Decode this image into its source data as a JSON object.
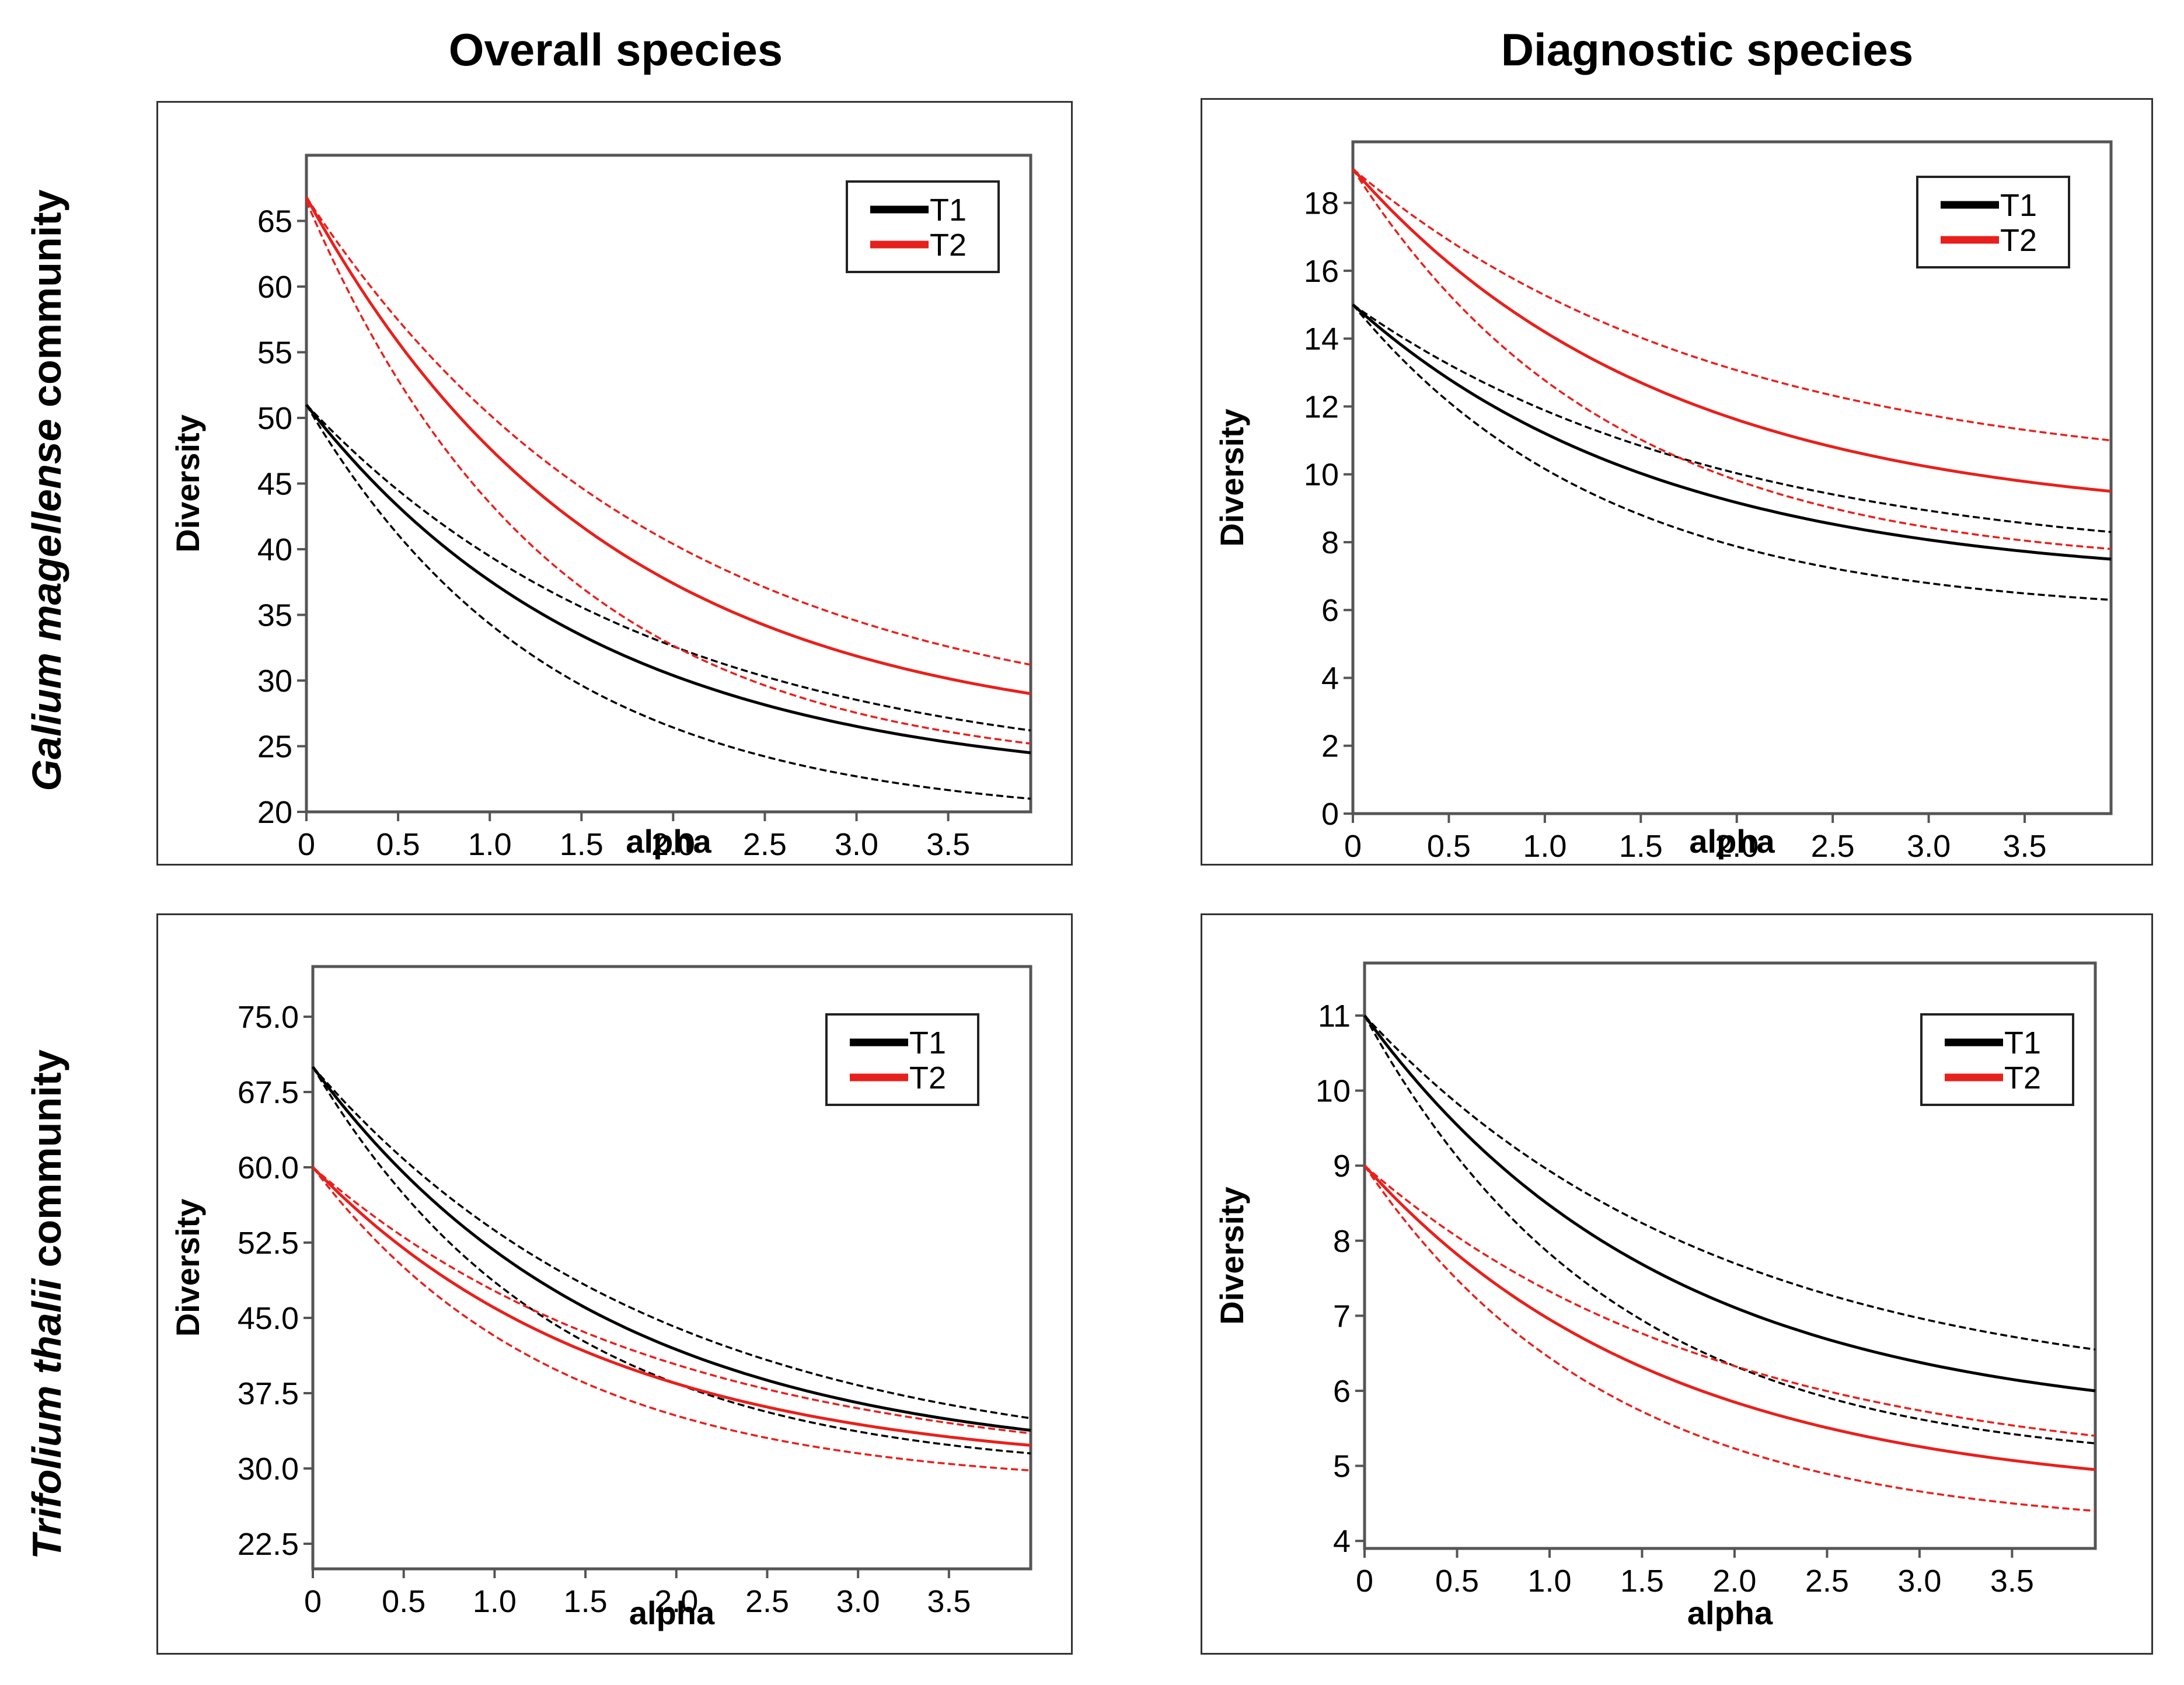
{
  "column_titles": [
    "Overall species",
    "Diagnostic species"
  ],
  "row_titles": [
    {
      "italic": "Galium magellense",
      "rest": " community"
    },
    {
      "italic": "Trifolium thalii",
      "rest": " community"
    }
  ],
  "colors": {
    "T1": "#000000",
    "T2": "#e8201c",
    "frame": "#555555"
  },
  "chart_data": [
    {
      "id": "galium-overall",
      "type": "line",
      "title": "Overall species",
      "xlabel": "alpha",
      "ylabel": "Diversity",
      "xlim": [
        0,
        3.95
      ],
      "ylim": [
        20,
        70
      ],
      "xticks": [
        0,
        0.5,
        1.0,
        1.5,
        2.0,
        2.5,
        3.0,
        3.5
      ],
      "xtick_labels": [
        "0",
        "0.5",
        "1.0",
        "1.5",
        "2.0",
        "2.5",
        "3.0",
        "3.5"
      ],
      "yticks": [
        20,
        25,
        30,
        35,
        40,
        45,
        50,
        55,
        60,
        65
      ],
      "ytick_labels": [
        "20",
        "25",
        "30",
        "35",
        "40",
        "45",
        "50",
        "55",
        "60",
        "65"
      ],
      "legend": [
        "T1",
        "T2"
      ],
      "legend_position": "top-right",
      "series": [
        {
          "name": "T1",
          "lower": [
            51,
            21
          ],
          "mid": [
            51,
            24.5
          ],
          "upper": [
            51,
            26.2
          ]
        },
        {
          "name": "T2",
          "lower": [
            66.5,
            25.2
          ],
          "mid": [
            66.8,
            29
          ],
          "upper": [
            66.8,
            31.2
          ]
        }
      ]
    },
    {
      "id": "galium-diagnostic",
      "type": "line",
      "title": "Diagnostic species",
      "xlabel": "alpha",
      "ylabel": "Diversity",
      "xlim": [
        0,
        3.95
      ],
      "ylim": [
        0,
        19.8
      ],
      "xticks": [
        0,
        0.5,
        1.0,
        1.5,
        2.0,
        2.5,
        3.0,
        3.5
      ],
      "xtick_labels": [
        "0",
        "0.5",
        "1.0",
        "1.5",
        "2.0",
        "2.5",
        "3.0",
        "3.5"
      ],
      "yticks": [
        0,
        2,
        4,
        6,
        8,
        10,
        12,
        14,
        16,
        18
      ],
      "ytick_labels": [
        "0",
        "2",
        "4",
        "6",
        "8",
        "10",
        "12",
        "14",
        "16",
        "18"
      ],
      "legend": [
        "T1",
        "T2"
      ],
      "legend_position": "top-right",
      "series": [
        {
          "name": "T1",
          "lower": [
            15,
            6.3
          ],
          "mid": [
            15,
            7.5
          ],
          "upper": [
            15,
            8.3
          ]
        },
        {
          "name": "T2",
          "lower": [
            19,
            7.8
          ],
          "mid": [
            19,
            9.5
          ],
          "upper": [
            19,
            11
          ]
        }
      ]
    },
    {
      "id": "trifolium-overall",
      "type": "line",
      "title": "Overall species",
      "xlabel": "alpha",
      "ylabel": "Diversity",
      "xlim": [
        0,
        3.95
      ],
      "ylim": [
        20,
        80
      ],
      "xticks": [
        0,
        0.5,
        1.0,
        1.5,
        2.0,
        2.5,
        3.0,
        3.5
      ],
      "xtick_labels": [
        "0",
        "0.5",
        "1.0",
        "1.5",
        "2.0",
        "2.5",
        "3.0",
        "3.5"
      ],
      "yticks": [
        22.5,
        30,
        37.5,
        45,
        52.5,
        60,
        67.5,
        75
      ],
      "ytick_labels": [
        "22.5",
        "30.0",
        "37.5",
        "45.0",
        "52.5",
        "60.0",
        "67.5",
        "75.0"
      ],
      "legend": [
        "T1",
        "T2"
      ],
      "legend_position": "top-right",
      "series": [
        {
          "name": "T1",
          "lower": [
            70,
            31.5
          ],
          "mid": [
            70,
            33.8
          ],
          "upper": [
            70,
            35
          ]
        },
        {
          "name": "T2",
          "lower": [
            60,
            29.8
          ],
          "mid": [
            60,
            32.3
          ],
          "upper": [
            60,
            33.5
          ]
        }
      ]
    },
    {
      "id": "trifolium-diagnostic",
      "type": "line",
      "title": "Diagnostic species",
      "xlabel": "alpha",
      "ylabel": "Diversity",
      "xlim": [
        0,
        3.95
      ],
      "ylim": [
        3.9,
        11.7
      ],
      "xticks": [
        0,
        0.5,
        1.0,
        1.5,
        2.0,
        2.5,
        3.0,
        3.5
      ],
      "xtick_labels": [
        "0",
        "0.5",
        "1.0",
        "1.5",
        "2.0",
        "2.5",
        "3.0",
        "3.5"
      ],
      "yticks": [
        4,
        5,
        6,
        7,
        8,
        9,
        10,
        11
      ],
      "ytick_labels": [
        "4",
        "5",
        "6",
        "7",
        "8",
        "9",
        "10",
        "11"
      ],
      "legend": [
        "T1",
        "T2"
      ],
      "legend_position": "top-right",
      "series": [
        {
          "name": "T1",
          "lower": [
            11,
            5.3
          ],
          "mid": [
            11,
            6
          ],
          "upper": [
            11,
            6.55
          ]
        },
        {
          "name": "T2",
          "lower": [
            9,
            4.4
          ],
          "mid": [
            9,
            4.95
          ],
          "upper": [
            9,
            5.4
          ]
        }
      ]
    }
  ]
}
